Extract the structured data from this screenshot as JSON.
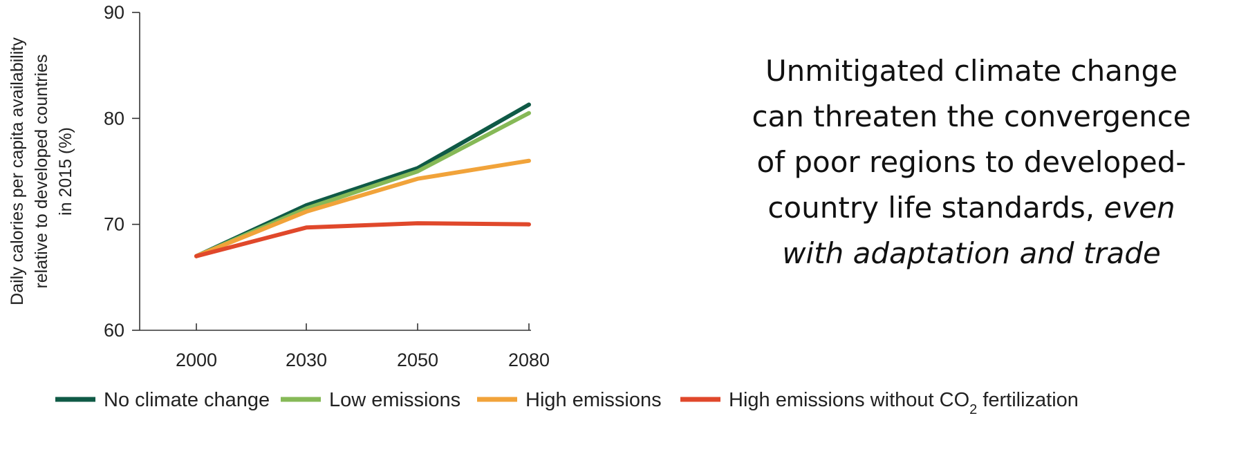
{
  "chart_data": {
    "type": "line",
    "x": [
      "2000",
      "2030",
      "2050",
      "2080"
    ],
    "ylabel_lines": [
      "Daily calories per capita availability",
      "relative to developed countries",
      "in 2015 (%)"
    ],
    "ylim": [
      60,
      90
    ],
    "yticks": [
      "60",
      "70",
      "80",
      "90"
    ],
    "series": [
      {
        "name": "No climate change",
        "color": "#0f5a46",
        "values": [
          67,
          71.8,
          75.3,
          81.3
        ]
      },
      {
        "name": "Low emissions",
        "color": "#86b957",
        "values": [
          67,
          71.5,
          75.0,
          80.5
        ]
      },
      {
        "name": "High emissions",
        "color": "#f1a33a",
        "values": [
          67,
          71.2,
          74.3,
          76.0
        ]
      },
      {
        "name": "High emissions without CO2 fertilization",
        "color": "#e0482b",
        "values": [
          67,
          69.7,
          70.1,
          70.0
        ]
      }
    ],
    "legend": {
      "position": "bottom",
      "labels": [
        {
          "prefix": "No climate change",
          "sub": "",
          "suffix": ""
        },
        {
          "prefix": "Low emissions",
          "sub": "",
          "suffix": ""
        },
        {
          "prefix": "High emissions",
          "sub": "",
          "suffix": ""
        },
        {
          "prefix": "High emissions without CO",
          "sub": "2",
          "suffix": " fertilization"
        }
      ]
    }
  },
  "annotation": {
    "lines": [
      "Unmitigated climate change",
      "can threaten the convergence",
      "of poor regions to developed-"
    ],
    "line4_plain": "country life standards, ",
    "line4_italic": "even",
    "line5_italic": "with adaptation and trade"
  }
}
